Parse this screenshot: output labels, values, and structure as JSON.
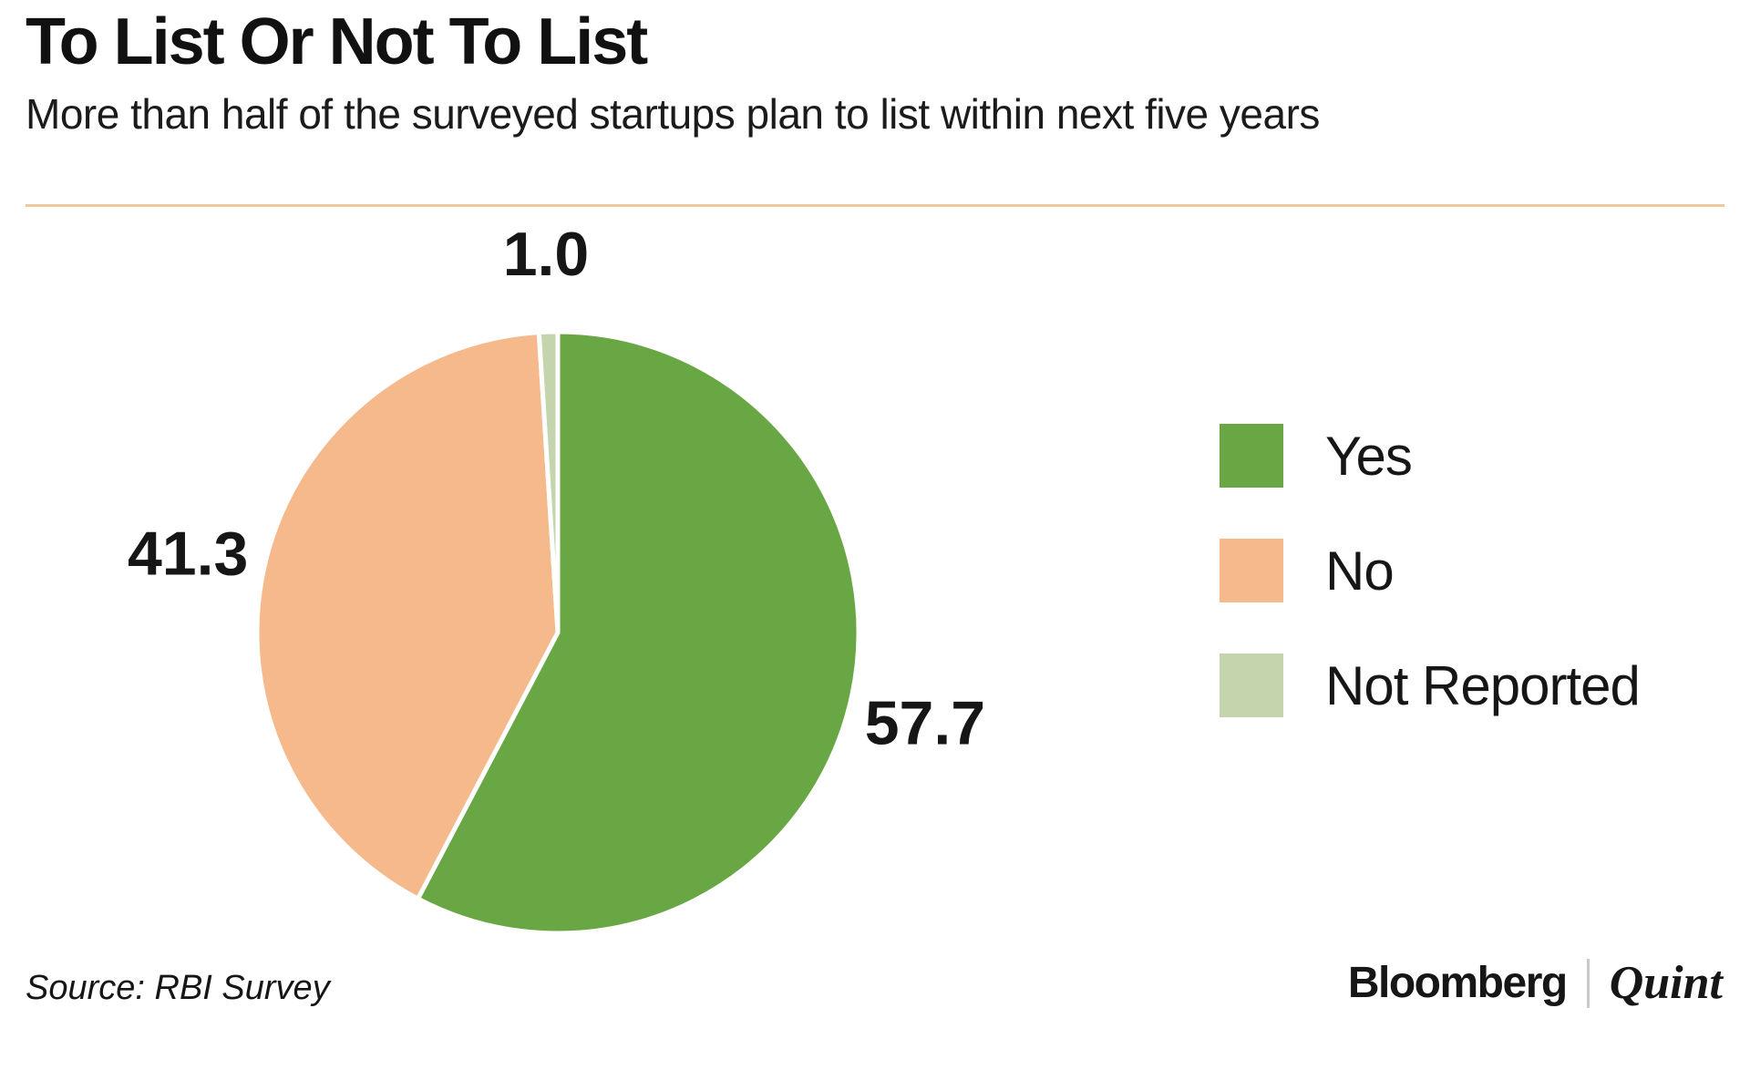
{
  "header": {
    "title": "To List Or Not To List",
    "subtitle": "More than half of the surveyed startups plan to list within next five years"
  },
  "chart_data": {
    "type": "pie",
    "title": "To List Or Not To List",
    "subtitle": "More than half of the surveyed startups plan to list within next five years",
    "slices": [
      {
        "label": "Yes",
        "value": 57.7,
        "display": "57.7",
        "color": "#69a744"
      },
      {
        "label": "No",
        "value": 41.3,
        "display": "41.3",
        "color": "#f5b98c"
      },
      {
        "label": "Not Reported",
        "value": 1.0,
        "display": "1.0",
        "color": "#c4d5ae"
      }
    ],
    "start_angle_deg": 0,
    "direction": "clockwise",
    "legend_position": "right",
    "value_label_color": "#161616",
    "slice_gap_color": "#ffffff",
    "source": "RBI Survey"
  },
  "legend": {
    "items": [
      {
        "label": "Yes",
        "color": "#69a744"
      },
      {
        "label": "No",
        "color": "#f5b98c"
      },
      {
        "label": "Not Reported",
        "color": "#c4d5ae"
      }
    ]
  },
  "footer": {
    "source": "Source: RBI Survey",
    "brand_primary": "Bloomberg",
    "brand_separator": "|",
    "brand_secondary": "Quint"
  }
}
